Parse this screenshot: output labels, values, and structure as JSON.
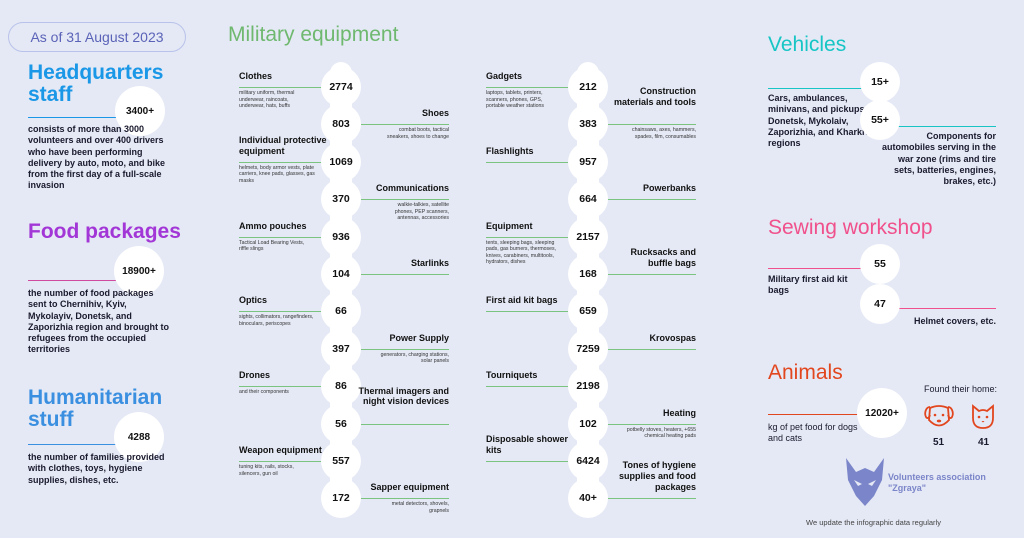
{
  "date": "As of 31 August 2023",
  "military_title": "Military equipment",
  "hq": {
    "title_line1": "Headquarters",
    "title_line2": "staff",
    "count": "3400+",
    "desc": "consists of more than 3000 volunteers and over 400 drivers who have been performing delivery by auto, moto, and bike from the first day of a full-scale invasion"
  },
  "food": {
    "title": "Food packages",
    "count": "18900+",
    "desc": "the number of food packages sent to Chernihiv, Kyiv, Mykolayiv, Donetsk, and Zaporizhia region and brought to refugees from the occupied territories"
  },
  "humanitarian": {
    "title_line1": "Humanitarian",
    "title_line2": "stuff",
    "count": "4288",
    "desc": "the number of families provided with clothes, toys, hygiene supplies, dishes, etc."
  },
  "col1": [
    {
      "value": "2774",
      "name": "Clothes",
      "sub": "military uniform, thermal underwear, raincoats, underwear, hats, buffs",
      "side": "left"
    },
    {
      "value": "803",
      "name": "Shoes",
      "sub": "combat boots, tactical sneakers, shoes to change",
      "side": "right"
    },
    {
      "value": "1069",
      "name": "Individual protective equipment",
      "sub": "helmets, body armor vests, plate carriers, knee pads, glasses, gas masks",
      "side": "left"
    },
    {
      "value": "370",
      "name": "Communications",
      "sub": "walkie-talkies, satellite phones, PEP scanners, antennas, accessories",
      "side": "right"
    },
    {
      "value": "936",
      "name": "Ammo pouches",
      "sub": "Tactical Load Bearing Vests, riffle slings",
      "side": "left"
    },
    {
      "value": "104",
      "name": "Starlinks",
      "sub": "",
      "side": "right"
    },
    {
      "value": "66",
      "name": "Optics",
      "sub": "sights, collimators, rangefinders, binoculars, periscopes",
      "side": "left"
    },
    {
      "value": "397",
      "name": "Power Supply",
      "sub": "generators, charging stations, solar panels",
      "side": "right"
    },
    {
      "value": "86",
      "name": "Drones",
      "sub": "and their components",
      "side": "left"
    },
    {
      "value": "56",
      "name": "Thermal imagers and night vision devices",
      "sub": "",
      "side": "right"
    },
    {
      "value": "557",
      "name": "Weapon equipment",
      "sub": "tuning kits, rails, stocks, silencers, gun oil",
      "side": "left"
    },
    {
      "value": "172",
      "name": "Sapper equipment",
      "sub": "metal detectors, shovels, grapnels",
      "side": "right"
    }
  ],
  "col2": [
    {
      "value": "212",
      "name": "Gadgets",
      "sub": "laptops, tablets, printers, scanners, phones, GPS, portable weather stations",
      "side": "left"
    },
    {
      "value": "383",
      "name": "Construction materials and tools",
      "sub": "chainsaws, axes, hammers, spades, film, consumables",
      "side": "right"
    },
    {
      "value": "957",
      "name": "Flashlights",
      "sub": "",
      "side": "left"
    },
    {
      "value": "664",
      "name": "Powerbanks",
      "sub": "",
      "side": "right"
    },
    {
      "value": "2157",
      "name": "Equipment",
      "sub": "tents, sleeping bags, sleeping pads, gas burners, thermoses, knives, carabiners, multitools, hydrators, dishes",
      "side": "left"
    },
    {
      "value": "168",
      "name": "Rucksacks and buffle bags",
      "sub": "",
      "side": "right"
    },
    {
      "value": "659",
      "name": "First aid kit bags",
      "sub": "",
      "side": "left"
    },
    {
      "value": "7259",
      "name": "Krovospas",
      "sub": "",
      "side": "right"
    },
    {
      "value": "2198",
      "name": "Tourniquets",
      "sub": "",
      "side": "left"
    },
    {
      "value": "102",
      "name": "Heating",
      "sub": "potbelly stoves, heaters, +655 chemical heating pads",
      "side": "right"
    },
    {
      "value": "6424",
      "name": "Disposable shower kits",
      "sub": "",
      "side": "left"
    },
    {
      "value": "40+",
      "name": "Tones of hygiene supplies and food packages",
      "sub": "",
      "side": "right"
    }
  ],
  "vehicles": {
    "title": "Vehicles",
    "count1": "15+",
    "desc1": "Cars, ambulances, minivans, and pickups for Donetsk, Mykolaiv, Zaporizhia, and Kharkiv regions",
    "count2": "55+",
    "desc2": "Components for automobiles serving in the war zone (rims and tire sets, batteries, engines, brakes, etc.)"
  },
  "sewing": {
    "title": "Sewing workshop",
    "count1": "55",
    "desc1": "Military first aid kit bags",
    "count2": "47",
    "desc2": "Helmet covers, etc."
  },
  "animals": {
    "title": "Animals",
    "found": "Found their home:",
    "count": "12020+",
    "desc": "kg of pet food for dogs and cats",
    "dogs": "51",
    "cats": "41"
  },
  "org": {
    "name_line1": "Volunteers association",
    "name_line2": "\"Zgraya\"",
    "footer": "We update the infographic data regularly"
  },
  "colors": {
    "blue": "#1a97e6",
    "purple": "#a236d6",
    "lightblue": "#3a8fe0",
    "green": "#7bc47f",
    "teal": "#17c5c5",
    "pink": "#f0508b",
    "red": "#e2461e",
    "slate": "#7b85c9"
  }
}
